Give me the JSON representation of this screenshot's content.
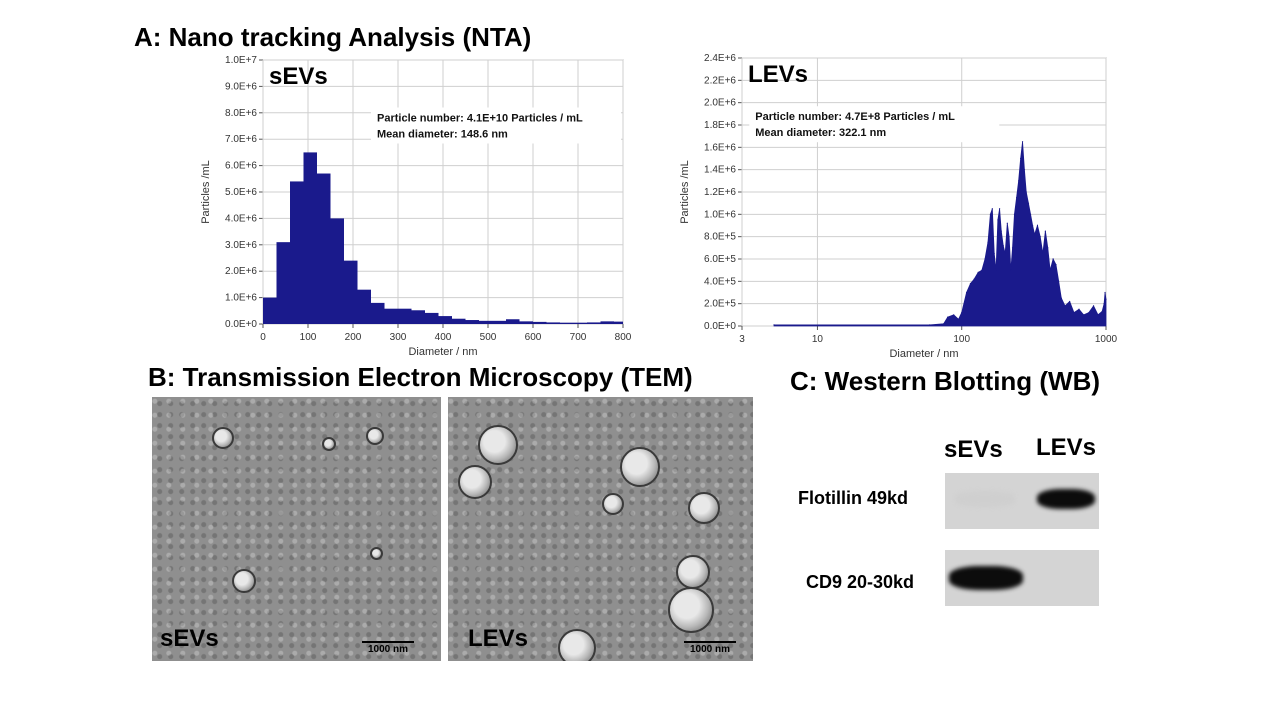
{
  "section_titles": {
    "nta": "A: Nano tracking Analysis (NTA)",
    "tem": "B: Transmission Electron Microscopy (TEM)",
    "wb": "C: Western Blotting (WB)"
  },
  "chart_data": [
    {
      "type": "bar",
      "panel_label": "sEVs",
      "xlabel": "Diameter / nm",
      "ylabel": "Particles /mL",
      "xlim": [
        0,
        800
      ],
      "ylim": [
        0,
        10000000
      ],
      "x_ticks": [
        0,
        100,
        200,
        300,
        400,
        500,
        600,
        700,
        800
      ],
      "y_tick_labels": [
        "0.0E+0",
        "1.0E+6",
        "2.0E+6",
        "3.0E+6",
        "4.0E+6",
        "5.0E+6",
        "6.0E+6",
        "7.0E+6",
        "8.0E+6",
        "9.0E+6",
        "1.0E+7"
      ],
      "annotations": [
        "Particle number: 4.1E+10 Particles / mL",
        "Mean diameter: 148.6 nm"
      ],
      "grid": true,
      "bar_color": "#1a1a8c",
      "bin_width": 30,
      "bin_starts": [
        0,
        30,
        60,
        90,
        120,
        150,
        180,
        210,
        240,
        270,
        300,
        330,
        360,
        390,
        420,
        450,
        480,
        510,
        540,
        570,
        600,
        630,
        660,
        690,
        720,
        750,
        780
      ],
      "values": [
        1000000,
        3100000,
        5400000,
        6500000,
        5700000,
        4000000,
        2400000,
        1300000,
        800000,
        580000,
        580000,
        520000,
        420000,
        300000,
        200000,
        150000,
        120000,
        120000,
        180000,
        100000,
        80000,
        60000,
        50000,
        50000,
        60000,
        100000,
        90000
      ]
    },
    {
      "type": "area",
      "panel_label": "LEVs",
      "xlabel": "Diameter / nm",
      "ylabel": "Particles /mL",
      "x_scale": "log",
      "xlim": [
        3,
        1000
      ],
      "ylim": [
        0,
        2400000
      ],
      "x_ticks": [
        3,
        10,
        100,
        1000
      ],
      "y_tick_labels": [
        "0.0E+0",
        "2.0E+5",
        "4.0E+5",
        "6.0E+5",
        "8.0E+5",
        "1.0E+6",
        "1.2E+6",
        "1.4E+6",
        "1.6E+6",
        "1.8E+6",
        "2.0E+6",
        "2.2E+6",
        "2.4E+6"
      ],
      "annotations": [
        "Particle number: 4.7E+8 Particles / mL",
        "Mean diameter: 322.1 nm"
      ],
      "grid": true,
      "fill_color": "#1a1a8c",
      "x": [
        5,
        60,
        75,
        80,
        88,
        95,
        100,
        108,
        115,
        122,
        130,
        138,
        145,
        152,
        158,
        163,
        168,
        173,
        178,
        183,
        188,
        194,
        200,
        207,
        213,
        219,
        225,
        232,
        240,
        248,
        256,
        264,
        272,
        280,
        290,
        300,
        310,
        320,
        335,
        350,
        365,
        380,
        395,
        410,
        430,
        450,
        470,
        490,
        520,
        560,
        600,
        650,
        700,
        760,
        820,
        880,
        940,
        970,
        985,
        1000
      ],
      "y": [
        10000,
        10000,
        20000,
        80000,
        100000,
        60000,
        120000,
        300000,
        380000,
        420000,
        480000,
        500000,
        600000,
        750000,
        1000000,
        1050000,
        650000,
        500000,
        950000,
        1050000,
        850000,
        720000,
        650000,
        920000,
        800000,
        500000,
        700000,
        1000000,
        1150000,
        1300000,
        1500000,
        1650000,
        1400000,
        1200000,
        1100000,
        1000000,
        900000,
        820000,
        900000,
        800000,
        650000,
        850000,
        700000,
        500000,
        600000,
        550000,
        400000,
        250000,
        180000,
        220000,
        120000,
        150000,
        100000,
        120000,
        180000,
        100000,
        130000,
        200000,
        300000,
        240000
      ]
    }
  ],
  "tem": {
    "images": [
      {
        "label": "sEVs",
        "scale_bar": "1000 nm"
      },
      {
        "label": "LEVs",
        "scale_bar": "1000 nm"
      }
    ]
  },
  "wb": {
    "columns": [
      "sEVs",
      "LEVs"
    ],
    "rows": [
      {
        "label": "Flotillin 49kd",
        "band_intensity": [
          0.05,
          0.95
        ]
      },
      {
        "label": "CD9 20-30kd",
        "band_intensity": [
          0.95,
          0.0
        ]
      }
    ]
  }
}
